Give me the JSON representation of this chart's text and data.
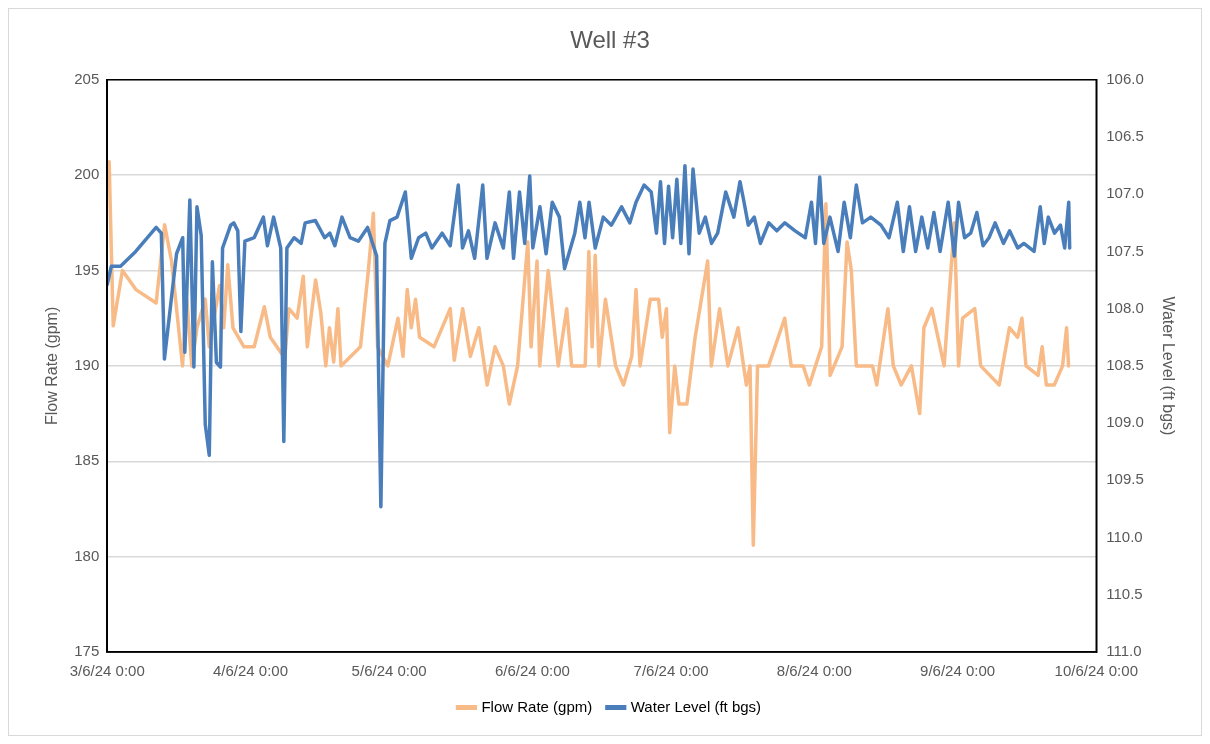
{
  "chart_data": {
    "type": "line",
    "title": "Well #3",
    "ylabel": "Flow Rate (gpm)",
    "y2label": "Water Level (ft bgs)",
    "xlim": [
      "2024-03-06T00:00",
      "2024-10-06T00:00"
    ],
    "xticks": [
      {
        "value": "2024-03-06T00:00",
        "label": "3/6/24 0:00"
      },
      {
        "value": "2024-04-06T00:00",
        "label": "4/6/24 0:00"
      },
      {
        "value": "2024-05-06T00:00",
        "label": "5/6/24 0:00"
      },
      {
        "value": "2024-06-06T00:00",
        "label": "6/6/24 0:00"
      },
      {
        "value": "2024-07-06T00:00",
        "label": "7/6/24 0:00"
      },
      {
        "value": "2024-08-06T00:00",
        "label": "8/6/24 0:00"
      },
      {
        "value": "2024-09-06T00:00",
        "label": "9/6/24 0:00"
      },
      {
        "value": "2024-10-06T00:00",
        "label": "10/6/24 0:00"
      }
    ],
    "ylim": [
      175,
      205
    ],
    "yticks": [
      175,
      180,
      185,
      190,
      195,
      200,
      205
    ],
    "y2lim": [
      111,
      106
    ],
    "y2ticks": [
      {
        "value": 111,
        "label": "111.0"
      },
      {
        "value": 110.5,
        "label": "110.5"
      },
      {
        "value": 110,
        "label": "110.0"
      },
      {
        "value": 109.5,
        "label": "109.5"
      },
      {
        "value": 109,
        "label": "109.0"
      },
      {
        "value": 108.5,
        "label": "108.5"
      },
      {
        "value": 108,
        "label": "108.0"
      },
      {
        "value": 107.5,
        "label": "107.5"
      },
      {
        "value": 107,
        "label": "107.0"
      },
      {
        "value": 106.5,
        "label": "106.5"
      },
      {
        "value": 106,
        "label": "106.0"
      }
    ],
    "grid": "y",
    "legend": "bottom",
    "marker": "none",
    "line_style": "solid",
    "series": [
      {
        "name": "Flow Rate (gpm)",
        "color": "#f8bb87",
        "x": [
          "2024-03-06T10:00",
          "2024-03-07T07:00",
          "2024-03-09T07:00",
          "2024-03-12T05:00",
          "2024-03-16T14:00",
          "2024-03-18T10:00",
          "2024-03-19T22:00",
          "2024-03-21T00:00",
          "2024-03-22T07:00",
          "2024-03-23T05:00",
          "2024-03-24T07:00",
          "2024-03-25T10:00",
          "2024-03-27T05:00",
          "2024-03-28T02:00",
          "2024-03-30T07:00",
          "2024-03-31T05:00",
          "2024-04-01T02:00",
          "2024-04-02T05:00",
          "2024-04-04T14:00",
          "2024-04-06T19:00",
          "2024-04-09T00:00",
          "2024-04-10T07:00",
          "2024-04-13T10:00",
          "2024-04-14T07:00",
          "2024-04-16T02:00",
          "2024-04-17T10:00",
          "2024-04-18T07:00",
          "2024-04-20T02:00",
          "2024-04-21T05:00",
          "2024-04-22T07:00",
          "2024-04-23T02:00",
          "2024-04-24T00:00",
          "2024-04-24T22:00",
          "2024-04-25T14:00",
          "2024-04-29T19:00",
          "2024-05-01T12:00",
          "2024-05-02T14:00",
          "2024-05-03T12:00",
          "2024-05-05T17:00",
          "2024-05-07T22:00",
          "2024-05-09T00:00",
          "2024-05-09T22:00",
          "2024-05-10T19:00",
          "2024-05-11T17:00",
          "2024-05-12T14:00",
          "2024-05-15T17:00",
          "2024-05-19T05:00",
          "2024-05-20T02:00",
          "2024-05-21T22:00",
          "2024-05-23T14:00",
          "2024-05-25T10:00",
          "2024-05-27T05:00",
          "2024-05-28T22:00",
          "2024-05-30T17:00",
          "2024-06-01T00:00",
          "2024-06-02T19:00",
          "2024-06-05T00:00",
          "2024-06-05T17:00",
          "2024-06-07T00:00",
          "2024-06-07T14:00",
          "2024-06-09T10:00",
          "2024-06-11T14:00",
          "2024-06-13T10:00",
          "2024-06-14T12:00",
          "2024-06-17T10:00",
          "2024-06-18T05:00",
          "2024-06-18T22:00",
          "2024-06-19T14:00",
          "2024-06-20T10:00",
          "2024-06-21T19:00",
          "2024-06-24T00:00",
          "2024-06-25T17:00",
          "2024-06-27T12:00",
          "2024-06-28T10:00",
          "2024-06-29T07:00",
          "2024-07-01T12:00",
          "2024-07-03T07:00",
          "2024-07-04T02:00",
          "2024-07-05T00:00",
          "2024-07-05T17:00",
          "2024-07-06T19:00",
          "2024-07-07T17:00",
          "2024-07-09T10:00",
          "2024-07-11T05:00",
          "2024-07-13T22:00",
          "2024-07-14T17:00",
          "2024-07-16T12:00",
          "2024-07-18T07:00",
          "2024-07-20T12:00",
          "2024-07-22T07:00",
          "2024-07-23T02:00",
          "2024-07-23T19:00",
          "2024-07-24T17:00",
          "2024-07-27T02:00",
          "2024-07-30T14:00",
          "2024-08-01T00:00",
          "2024-08-03T14:00",
          "2024-08-04T22:00",
          "2024-08-07T14:00",
          "2024-08-08T12:00",
          "2024-08-09T10:00",
          "2024-08-12T00:00",
          "2024-08-13T02:00",
          "2024-08-14T00:00",
          "2024-08-15T02:00",
          "2024-08-18T14:00",
          "2024-08-19T12:00",
          "2024-08-21T22:00",
          "2024-08-23T02:00",
          "2024-08-24T19:00",
          "2024-08-27T00:00",
          "2024-08-28T19:00",
          "2024-08-29T17:00",
          "2024-08-31T10:00",
          "2024-09-03T02:00",
          "2024-09-05T07:00",
          "2024-09-06T05:00",
          "2024-09-07T02:00",
          "2024-09-09T17:00",
          "2024-09-11T00:00",
          "2024-09-15T00:00",
          "2024-09-17T05:00",
          "2024-09-19T00:00",
          "2024-09-19T22:00",
          "2024-09-20T19:00",
          "2024-09-23T10:00",
          "2024-09-24T07:00",
          "2024-09-25T05:00",
          "2024-09-26T22:00",
          "2024-09-28T17:00",
          "2024-09-29T14:00",
          "2024-09-30T00:00"
        ],
        "values": [
          200.7,
          192.1,
          195.0,
          194.0,
          193.3,
          197.4,
          195.5,
          193.0,
          190.0,
          193.5,
          190.0,
          192.0,
          193.5,
          191.0,
          194.2,
          192.0,
          195.3,
          192.0,
          191.0,
          191.0,
          193.1,
          191.5,
          190.4,
          193.0,
          192.5,
          194.7,
          191.0,
          194.5,
          192.8,
          190.0,
          192.0,
          190.2,
          193.0,
          190.0,
          191.0,
          195.0,
          198.0,
          191.0,
          190.0,
          192.5,
          190.5,
          194.0,
          192.0,
          193.5,
          191.5,
          191.0,
          193.0,
          190.3,
          193.0,
          190.5,
          192.0,
          189.0,
          191.0,
          190.0,
          188.0,
          190.0,
          196.5,
          191.0,
          195.5,
          190.0,
          195.0,
          190.0,
          193.0,
          190.0,
          190.0,
          196.0,
          191.0,
          195.8,
          190.0,
          193.5,
          190.0,
          189.0,
          190.5,
          194.0,
          190.0,
          193.5,
          193.5,
          191.5,
          193.0,
          186.5,
          190.0,
          188.0,
          188.0,
          191.5,
          195.5,
          190.0,
          193.0,
          190.0,
          192.0,
          189.0,
          190.0,
          180.6,
          190.0,
          190.0,
          192.5,
          190.0,
          190.0,
          189.0,
          191.0,
          198.5,
          189.5,
          191.0,
          196.5,
          195.0,
          190.0,
          190.0,
          189.0,
          193.0,
          190.0,
          189.0,
          190.0,
          187.5,
          192.0,
          193.0,
          190.0,
          197.5,
          190.0,
          192.5,
          193.0,
          190.0,
          189.0,
          192.0,
          191.5,
          192.5,
          190.0,
          189.5,
          191.0,
          189.0,
          189.0,
          190.0,
          192.0,
          190.0
        ]
      },
      {
        "name": "Water Level (ft bgs)",
        "color": "#4a7ebb",
        "axis": "y2",
        "x": [
          "2024-03-06T00:00",
          "2024-03-06T21:00",
          "2024-03-08T21:00",
          "2024-03-12T04:00",
          "2024-03-16T14:00",
          "2024-03-17T17:00",
          "2024-03-18T09:00",
          "2024-03-21T00:00",
          "2024-03-22T08:00",
          "2024-03-22T19:00",
          "2024-03-23T21:00",
          "2024-03-24T18:00",
          "2024-03-25T10:00",
          "2024-03-26T08:00",
          "2024-03-27T05:00",
          "2024-03-28T02:00",
          "2024-03-28T18:00",
          "2024-03-29T15:00",
          "2024-03-30T12:00",
          "2024-03-30T23:00",
          "2024-04-01T17:00",
          "2024-04-02T09:00",
          "2024-04-03T06:00",
          "2024-04-03T22:00",
          "2024-04-04T19:00",
          "2024-04-06T19:00",
          "2024-04-08T19:00",
          "2024-04-09T16:00",
          "2024-04-11T00:00",
          "2024-04-12T13:00",
          "2024-04-13T05:00",
          "2024-04-13T21:00",
          "2024-04-15T10:00",
          "2024-04-16T23:00",
          "2024-04-17T20:00",
          "2024-04-20T01:00",
          "2024-04-22T01:00",
          "2024-04-23T04:00",
          "2024-04-24T06:00",
          "2024-04-25T19:00",
          "2024-04-27T13:00",
          "2024-04-29T08:00",
          "2024-05-01T08:00",
          "2024-05-03T07:00",
          "2024-05-04T05:00",
          "2024-05-05T02:00",
          "2024-05-06T04:00",
          "2024-05-07T17:00",
          "2024-05-09T12:00",
          "2024-05-10T19:00",
          "2024-05-12T09:00",
          "2024-05-13T22:00",
          "2024-05-15T06:00",
          "2024-05-17T11:00",
          "2024-05-19T05:00",
          "2024-05-20T23:00",
          "2024-05-21T21:00",
          "2024-05-23T04:00",
          "2024-05-24T12:00",
          "2024-05-26T06:00",
          "2024-05-27T04:00",
          "2024-05-28T22:00",
          "2024-05-30T17:00",
          "2024-06-01T00:00",
          "2024-06-01T22:00",
          "2024-06-03T05:00",
          "2024-06-04T08:00",
          "2024-06-05T10:00",
          "2024-06-06T02:00",
          "2024-06-07T15:00",
          "2024-06-08T23:00",
          "2024-06-10T07:00",
          "2024-06-11T20:00",
          "2024-06-12T23:00",
          "2024-06-15T04:00",
          "2024-06-16T06:00",
          "2024-06-17T09:00",
          "2024-06-18T06:00",
          "2024-06-19T14:00",
          "2024-06-21T08:00",
          "2024-06-23T02:00",
          "2024-06-25T07:00",
          "2024-06-27T02:00",
          "2024-06-28T10:00",
          "2024-06-30T04:00",
          "2024-07-01T17:00",
          "2024-07-02T20:00",
          "2024-07-03T17:00",
          "2024-07-04T14:00",
          "2024-07-05T11:00",
          "2024-07-06T08:00",
          "2024-07-07T06:00",
          "2024-07-08T03:00",
          "2024-07-09T00:00",
          "2024-07-09T21:00",
          "2024-07-10T18:00",
          "2024-07-12T02:00",
          "2024-07-13T10:00",
          "2024-07-14T18:00",
          "2024-07-16T02:00",
          "2024-07-17T20:00",
          "2024-07-19T14:00",
          "2024-07-20T22:00",
          "2024-07-21T19:00",
          "2024-07-22T17:00",
          "2024-07-24T00:00",
          "2024-07-25T08:00",
          "2024-07-27T03:00",
          "2024-07-28T21:00",
          "2024-07-30T15:00",
          "2024-08-01T20:00",
          "2024-08-04T01:00",
          "2024-08-05T09:00",
          "2024-08-06T06:00",
          "2024-08-07T04:00",
          "2024-08-08T01:00",
          "2024-08-09T09:00",
          "2024-08-11T03:00",
          "2024-08-12T11:00",
          "2024-08-13T19:00",
          "2024-08-15T02:00",
          "2024-08-16T10:00",
          "2024-08-18T05:00",
          "2024-08-20T10:00",
          "2024-08-22T04:00",
          "2024-08-23T23:00",
          "2024-08-25T06:00",
          "2024-08-26T14:00",
          "2024-08-27T22:00",
          "2024-08-29T06:00",
          "2024-08-30T13:00",
          "2024-08-31T21:00",
          "2024-09-02T05:00",
          "2024-09-03T23:00",
          "2024-09-05T07:00",
          "2024-09-06T05:00",
          "2024-09-07T12:00",
          "2024-09-08T20:00",
          "2024-09-10T04:00",
          "2024-09-11T12:00",
          "2024-09-12T19:00",
          "2024-09-14T03:00",
          "2024-09-15T22:00",
          "2024-09-17T06:00",
          "2024-09-19T00:00",
          "2024-09-20T08:00",
          "2024-09-22T13:00",
          "2024-09-23T21:00",
          "2024-09-24T18:00",
          "2024-09-25T15:00",
          "2024-09-26T23:00",
          "2024-09-28T06:00",
          "2024-09-29T04:00",
          "2024-09-30T01:00",
          "2024-09-30T06:00"
        ],
        "values": [
          107.79,
          107.63,
          107.63,
          107.5,
          107.29,
          107.34,
          108.44,
          107.52,
          107.38,
          108.38,
          107.05,
          108.51,
          107.11,
          107.36,
          109.01,
          109.28,
          107.59,
          108.47,
          108.51,
          107.47,
          107.27,
          107.25,
          107.32,
          108.2,
          107.41,
          107.38,
          107.2,
          107.45,
          107.2,
          107.47,
          109.16,
          107.47,
          107.38,
          107.43,
          107.25,
          107.23,
          107.38,
          107.34,
          107.45,
          107.2,
          107.38,
          107.41,
          107.29,
          107.54,
          109.73,
          107.43,
          107.23,
          107.2,
          106.98,
          107.56,
          107.38,
          107.34,
          107.47,
          107.34,
          107.45,
          106.92,
          107.47,
          107.32,
          107.56,
          106.92,
          107.56,
          107.25,
          107.47,
          106.98,
          107.56,
          106.98,
          107.43,
          106.84,
          107.47,
          107.11,
          107.52,
          107.07,
          107.2,
          107.65,
          107.34,
          107.07,
          107.38,
          107.07,
          107.47,
          107.2,
          107.27,
          107.11,
          107.25,
          107.07,
          106.92,
          106.98,
          107.34,
          106.89,
          107.43,
          106.93,
          107.38,
          106.87,
          107.43,
          106.75,
          107.52,
          106.78,
          107.34,
          107.2,
          107.43,
          107.34,
          106.98,
          107.2,
          106.89,
          107.07,
          107.27,
          107.2,
          107.43,
          107.25,
          107.32,
          107.25,
          107.32,
          107.38,
          107.07,
          107.43,
          106.85,
          107.43,
          107.2,
          107.5,
          107.07,
          107.38,
          106.92,
          107.25,
          107.2,
          107.27,
          107.38,
          107.07,
          107.5,
          107.11,
          107.5,
          107.2,
          107.47,
          107.16,
          107.5,
          107.07,
          107.54,
          107.07,
          107.38,
          107.34,
          107.16,
          107.45,
          107.38,
          107.25,
          107.43,
          107.32,
          107.47,
          107.43,
          107.5,
          107.11,
          107.43,
          107.2,
          107.34,
          107.27,
          107.47,
          107.07,
          107.47
        ]
      }
    ]
  }
}
